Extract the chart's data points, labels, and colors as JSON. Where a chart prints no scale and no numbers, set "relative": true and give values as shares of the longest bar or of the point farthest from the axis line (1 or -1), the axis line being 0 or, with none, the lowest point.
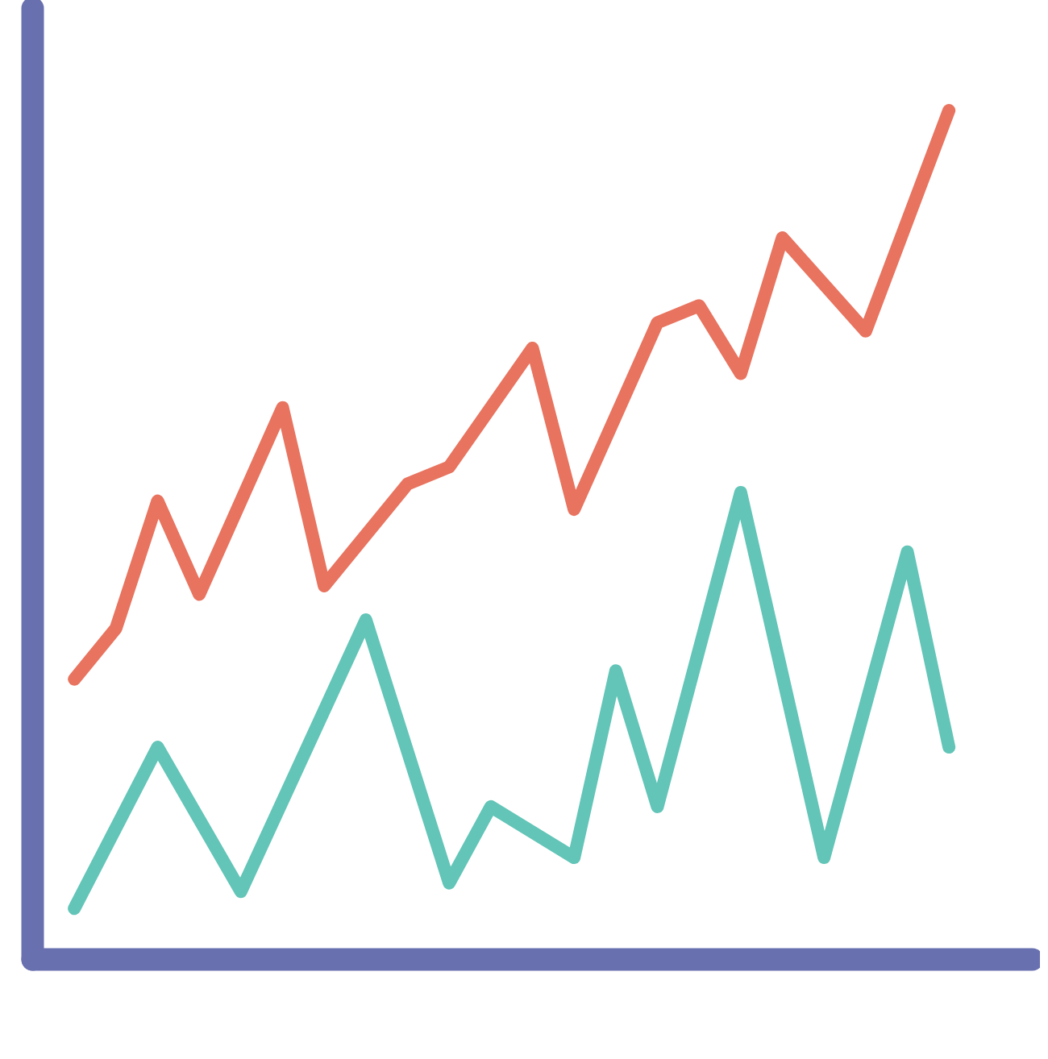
{
  "chart_data": {
    "type": "line",
    "relative": true,
    "grid": false,
    "marker": "none",
    "line_style": "solid",
    "categories": [
      null,
      null,
      null,
      null,
      null,
      null,
      null,
      null,
      null,
      null,
      null,
      null,
      null,
      null,
      null,
      null,
      null,
      null,
      null,
      null,
      null,
      null
    ],
    "series": [
      {
        "color": "#e8735f",
        "values": [
          0.33,
          0.39,
          0.54,
          0.43,
          null,
          0.65,
          0.44,
          null,
          0.56,
          0.58,
          null,
          0.72,
          0.53,
          null,
          0.75,
          0.77,
          0.69,
          0.85,
          null,
          0.74,
          null,
          1.0
        ]
      },
      {
        "color": "#62c5b7",
        "values": [
          0.06,
          null,
          0.25,
          null,
          0.08,
          null,
          null,
          0.4,
          null,
          0.09,
          0.18,
          null,
          0.12,
          0.34,
          0.18,
          null,
          0.55,
          null,
          0.12,
          null,
          0.48,
          0.25
        ]
      }
    ]
  }
}
